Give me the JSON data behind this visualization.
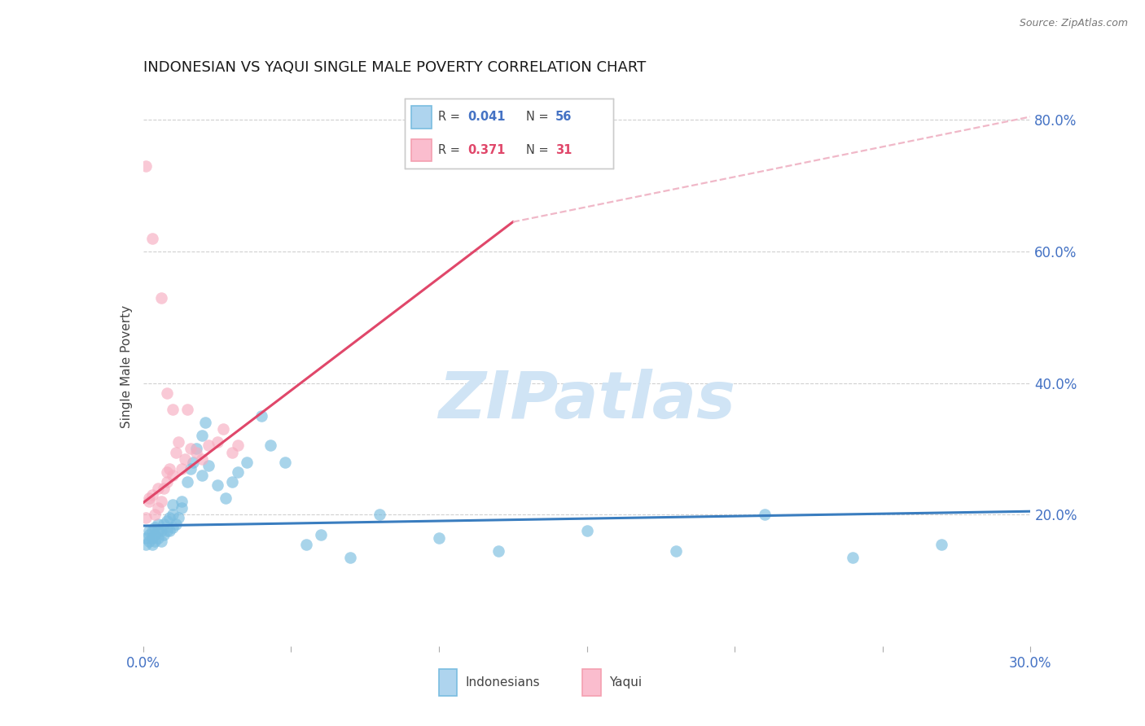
{
  "title": "INDONESIAN VS YAQUI SINGLE MALE POVERTY CORRELATION CHART",
  "source": "Source: ZipAtlas.com",
  "ylabel": "Single Male Poverty",
  "legend_label1": "Indonesians",
  "legend_label2": "Yaqui",
  "xlim": [
    0.0,
    0.3
  ],
  "ylim": [
    0.0,
    0.85
  ],
  "indonesian_color": "#7abde0",
  "yaqui_color": "#f7adc0",
  "trend_indonesian_color": "#3a7dbf",
  "trend_yaqui_color": "#e0476a",
  "dashed_line_color": "#f0b8c8",
  "watermark_color": "#d0e4f5",
  "indonesian_x": [
    0.001,
    0.001,
    0.002,
    0.002,
    0.002,
    0.003,
    0.003,
    0.003,
    0.004,
    0.004,
    0.004,
    0.005,
    0.005,
    0.005,
    0.006,
    0.006,
    0.007,
    0.007,
    0.008,
    0.008,
    0.009,
    0.009,
    0.01,
    0.01,
    0.011,
    0.012,
    0.013,
    0.015,
    0.017,
    0.02,
    0.02,
    0.022,
    0.025,
    0.028,
    0.03,
    0.032,
    0.035,
    0.04,
    0.043,
    0.048,
    0.055,
    0.06,
    0.07,
    0.08,
    0.1,
    0.12,
    0.15,
    0.18,
    0.21,
    0.24,
    0.27,
    0.01,
    0.013,
    0.016,
    0.018,
    0.021
  ],
  "indonesian_y": [
    0.155,
    0.165,
    0.16,
    0.17,
    0.175,
    0.155,
    0.165,
    0.175,
    0.16,
    0.17,
    0.18,
    0.165,
    0.175,
    0.185,
    0.16,
    0.175,
    0.17,
    0.185,
    0.175,
    0.19,
    0.175,
    0.195,
    0.18,
    0.2,
    0.185,
    0.195,
    0.21,
    0.25,
    0.28,
    0.32,
    0.26,
    0.275,
    0.245,
    0.225,
    0.25,
    0.265,
    0.28,
    0.35,
    0.305,
    0.28,
    0.155,
    0.17,
    0.135,
    0.2,
    0.165,
    0.145,
    0.175,
    0.145,
    0.2,
    0.135,
    0.155,
    0.215,
    0.22,
    0.27,
    0.3,
    0.34
  ],
  "yaqui_x": [
    0.001,
    0.002,
    0.002,
    0.003,
    0.004,
    0.005,
    0.005,
    0.006,
    0.007,
    0.008,
    0.008,
    0.009,
    0.01,
    0.011,
    0.012,
    0.013,
    0.014,
    0.016,
    0.018,
    0.02,
    0.022,
    0.025,
    0.027,
    0.03,
    0.032,
    0.001,
    0.003,
    0.006,
    0.008,
    0.01,
    0.015
  ],
  "yaqui_y": [
    0.195,
    0.22,
    0.225,
    0.23,
    0.2,
    0.21,
    0.24,
    0.22,
    0.24,
    0.25,
    0.265,
    0.27,
    0.26,
    0.295,
    0.31,
    0.27,
    0.285,
    0.3,
    0.295,
    0.285,
    0.305,
    0.31,
    0.33,
    0.295,
    0.305,
    0.73,
    0.62,
    0.53,
    0.385,
    0.36,
    0.36
  ],
  "trend_ind_x0": 0.0,
  "trend_ind_x1": 0.3,
  "trend_ind_y0": 0.183,
  "trend_ind_y1": 0.205,
  "trend_yaq_solid_x0": 0.0,
  "trend_yaq_solid_x1": 0.125,
  "trend_yaq_solid_y0": 0.218,
  "trend_yaq_solid_y1": 0.645,
  "trend_yaq_dash_x0": 0.125,
  "trend_yaq_dash_x1": 0.3,
  "trend_yaq_dash_y0": 0.645,
  "trend_yaq_dash_y1": 0.805
}
